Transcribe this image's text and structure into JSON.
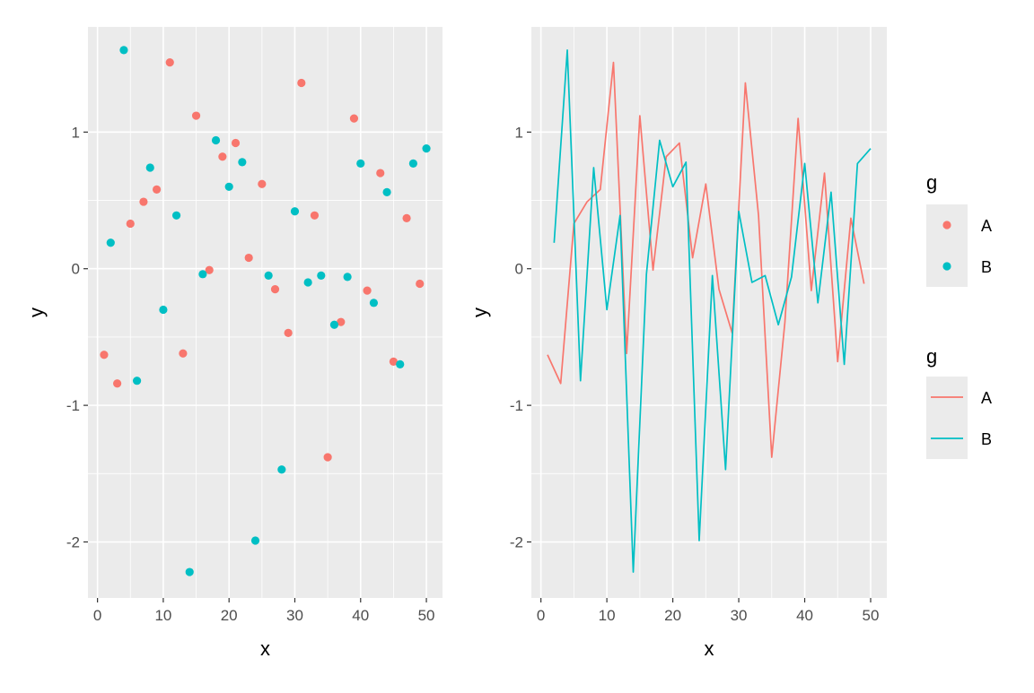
{
  "chart_data": [
    {
      "type": "scatter",
      "xlabel": "x",
      "ylabel": "y",
      "xlim": [
        -1.45,
        52.45
      ],
      "ylim": [
        -2.41,
        1.77
      ],
      "xticks": [
        "0",
        "10",
        "20",
        "30",
        "40",
        "50"
      ],
      "yticks": [
        "-2",
        "-1",
        "0",
        "1"
      ],
      "series": [
        {
          "name": "A",
          "color": "#F8766D",
          "x": [
            1,
            3,
            5,
            7,
            9,
            11,
            13,
            15,
            17,
            19,
            21,
            23,
            25,
            27,
            29,
            31,
            33,
            35,
            37,
            39,
            41,
            43,
            45,
            47,
            49
          ],
          "y": [
            -0.63,
            -0.84,
            0.33,
            0.49,
            0.58,
            1.51,
            -0.62,
            1.12,
            -0.01,
            0.82,
            0.92,
            0.08,
            0.62,
            -0.15,
            -0.47,
            1.36,
            0.39,
            -1.38,
            -0.39,
            1.1,
            -0.16,
            0.7,
            -0.68,
            0.37,
            -0.11
          ]
        },
        {
          "name": "B",
          "color": "#00BFC4",
          "x": [
            2,
            4,
            6,
            8,
            10,
            12,
            14,
            16,
            18,
            20,
            22,
            24,
            26,
            28,
            30,
            32,
            34,
            36,
            38,
            40,
            42,
            44,
            46,
            48,
            50
          ],
          "y": [
            0.19,
            1.6,
            -0.82,
            0.74,
            -0.3,
            0.39,
            -2.22,
            -0.04,
            0.94,
            0.6,
            0.78,
            -1.99,
            -0.05,
            -1.47,
            0.42,
            -0.1,
            -0.05,
            -0.41,
            -0.06,
            0.77,
            -0.25,
            0.56,
            -0.7,
            0.77,
            0.88
          ]
        }
      ]
    },
    {
      "type": "line",
      "xlabel": "x",
      "ylabel": "y",
      "xlim": [
        -1.45,
        52.45
      ],
      "ylim": [
        -2.41,
        1.77
      ],
      "xticks": [
        "0",
        "10",
        "20",
        "30",
        "40",
        "50"
      ],
      "yticks": [
        "-2",
        "-1",
        "0",
        "1"
      ],
      "series": [
        {
          "name": "A",
          "color": "#F8766D",
          "x": [
            1,
            3,
            5,
            7,
            9,
            11,
            13,
            15,
            17,
            19,
            21,
            23,
            25,
            27,
            29,
            31,
            33,
            35,
            37,
            39,
            41,
            43,
            45,
            47,
            49
          ],
          "y": [
            -0.63,
            -0.84,
            0.33,
            0.49,
            0.58,
            1.51,
            -0.62,
            1.12,
            -0.01,
            0.82,
            0.92,
            0.08,
            0.62,
            -0.15,
            -0.47,
            1.36,
            0.39,
            -1.38,
            -0.39,
            1.1,
            -0.16,
            0.7,
            -0.68,
            0.37,
            -0.11
          ]
        },
        {
          "name": "B",
          "color": "#00BFC4",
          "x": [
            2,
            4,
            6,
            8,
            10,
            12,
            14,
            16,
            18,
            20,
            22,
            24,
            26,
            28,
            30,
            32,
            34,
            36,
            38,
            40,
            42,
            44,
            46,
            48,
            50
          ],
          "y": [
            0.19,
            1.6,
            -0.82,
            0.74,
            -0.3,
            0.39,
            -2.22,
            -0.04,
            0.94,
            0.6,
            0.78,
            -1.99,
            -0.05,
            -1.47,
            0.42,
            -0.1,
            -0.05,
            -0.41,
            -0.06,
            0.77,
            -0.25,
            0.56,
            -0.7,
            0.77,
            0.88
          ]
        }
      ]
    }
  ],
  "legends": [
    {
      "title": "g",
      "key": "point",
      "items": [
        {
          "label": "A",
          "color": "#F8766D"
        },
        {
          "label": "B",
          "color": "#00BFC4"
        }
      ]
    },
    {
      "title": "g",
      "key": "line",
      "items": [
        {
          "label": "A",
          "color": "#F8766D"
        },
        {
          "label": "B",
          "color": "#00BFC4"
        }
      ]
    }
  ]
}
